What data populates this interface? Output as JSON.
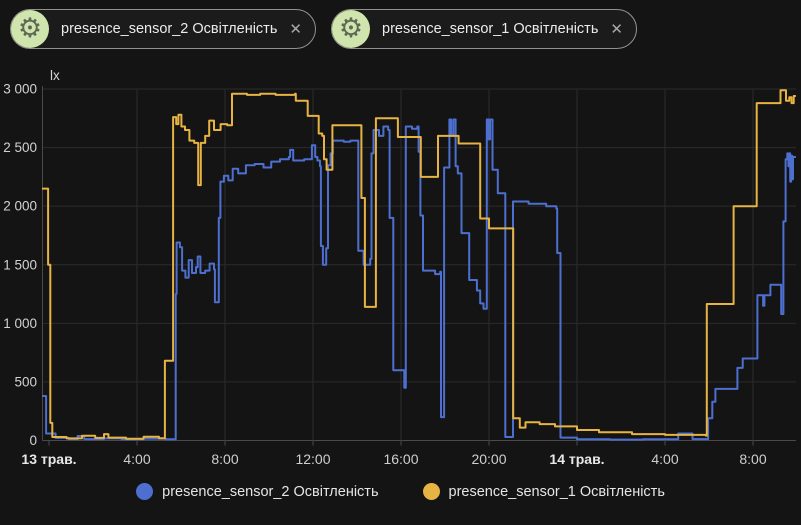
{
  "colors": {
    "background": "#141414",
    "grid": "#2b2b2b",
    "axis": "#4a4a4a",
    "tick_text": "#cfcfcf",
    "date_text": "#e8e8e8",
    "chip_icon_bg": "#cfe5ad",
    "chip_icon_fg": "#5d6954",
    "series_blue": "#4d6fd0",
    "series_yellow": "#e7b342"
  },
  "chips": [
    {
      "label": "presence_sensor_2 Освітленість",
      "icon": "gear-icon",
      "close": "✕"
    },
    {
      "label": "presence_sensor_1 Освітленість",
      "icon": "gear-icon",
      "close": "✕"
    }
  ],
  "legend": [
    {
      "label": "presence_sensor_2 Освітленість",
      "color": "#4d6fd0"
    },
    {
      "label": "presence_sensor_1 Освітленість",
      "color": "#e7b342"
    }
  ],
  "chart_data": {
    "type": "line",
    "unit": "lx",
    "grid": true,
    "legend_position": "bottom",
    "y_axis": {
      "max": 3000,
      "min": 0,
      "ticks": [
        {
          "v": 3000,
          "label": "3 000"
        },
        {
          "v": 2500,
          "label": "2 500"
        },
        {
          "v": 2000,
          "label": "2 000"
        },
        {
          "v": 1500,
          "label": "1 500"
        },
        {
          "v": 1000,
          "label": "1 000"
        },
        {
          "v": 500,
          "label": "500"
        },
        {
          "v": 0,
          "label": "0"
        }
      ]
    },
    "x_axis": {
      "note": "t = hours since 13 May 00:00, range shown -0.32 .. 33.95",
      "ticks": [
        {
          "t": 0,
          "label": "13 трав.",
          "bold": true
        },
        {
          "t": 4,
          "label": "4:00"
        },
        {
          "t": 8,
          "label": "8:00"
        },
        {
          "t": 12,
          "label": "12:00"
        },
        {
          "t": 16,
          "label": "16:00"
        },
        {
          "t": 20,
          "label": "20:00"
        },
        {
          "t": 24,
          "label": "14 трав.",
          "bold": true
        },
        {
          "t": 28,
          "label": "4:00"
        },
        {
          "t": 32,
          "label": "8:00"
        }
      ]
    },
    "series": [
      {
        "name": "presence_sensor_2 Освітленість",
        "color": "#4d6fd0",
        "step": true,
        "points": [
          [
            -0.32,
            380
          ],
          [
            -0.18,
            380
          ],
          [
            -0.13,
            60
          ],
          [
            0.3,
            22
          ],
          [
            0.9,
            12
          ],
          [
            1.25,
            12
          ],
          [
            1.3,
            38
          ],
          [
            1.55,
            38
          ],
          [
            1.6,
            12
          ],
          [
            2.5,
            18
          ],
          [
            3.3,
            10
          ],
          [
            4.3,
            16
          ],
          [
            5.3,
            10
          ],
          [
            5.73,
            10
          ],
          [
            5.76,
            1250
          ],
          [
            5.8,
            1690
          ],
          [
            5.95,
            1650
          ],
          [
            6.05,
            1450
          ],
          [
            6.2,
            1390
          ],
          [
            6.35,
            1540
          ],
          [
            6.5,
            1430
          ],
          [
            6.68,
            1480
          ],
          [
            6.76,
            1570
          ],
          [
            6.88,
            1430
          ],
          [
            7.1,
            1450
          ],
          [
            7.3,
            1510
          ],
          [
            7.5,
            1460
          ],
          [
            7.54,
            1180
          ],
          [
            7.68,
            1180
          ],
          [
            7.72,
            1900
          ],
          [
            7.79,
            2210
          ],
          [
            7.95,
            2260
          ],
          [
            8.15,
            2220
          ],
          [
            8.35,
            2320
          ],
          [
            8.6,
            2280
          ],
          [
            8.95,
            2350
          ],
          [
            9.35,
            2360
          ],
          [
            9.75,
            2330
          ],
          [
            10.1,
            2380
          ],
          [
            10.5,
            2400
          ],
          [
            10.9,
            2420
          ],
          [
            10.96,
            2480
          ],
          [
            11.1,
            2390
          ],
          [
            11.6,
            2400
          ],
          [
            11.95,
            2520
          ],
          [
            12.1,
            2420
          ],
          [
            12.2,
            2390
          ],
          [
            12.32,
            2340
          ],
          [
            12.36,
            1660
          ],
          [
            12.45,
            1500
          ],
          [
            12.6,
            1640
          ],
          [
            12.68,
            2350
          ],
          [
            12.8,
            2450
          ],
          [
            12.9,
            2560
          ],
          [
            13.4,
            2550
          ],
          [
            13.7,
            2560
          ],
          [
            14.02,
            2560
          ],
          [
            14.06,
            1620
          ],
          [
            14.3,
            1500
          ],
          [
            14.6,
            1550
          ],
          [
            14.66,
            2450
          ],
          [
            14.75,
            2650
          ],
          [
            15.0,
            2600
          ],
          [
            15.2,
            2680
          ],
          [
            15.42,
            2650
          ],
          [
            15.48,
            1900
          ],
          [
            15.6,
            1900
          ],
          [
            15.65,
            600
          ],
          [
            16.1,
            600
          ],
          [
            16.15,
            450
          ],
          [
            16.18,
            450
          ],
          [
            16.22,
            2680
          ],
          [
            16.5,
            2660
          ],
          [
            16.74,
            2680
          ],
          [
            16.8,
            2465
          ],
          [
            16.88,
            1920
          ],
          [
            17.0,
            1450
          ],
          [
            17.35,
            1450
          ],
          [
            17.55,
            1420
          ],
          [
            17.78,
            1440
          ],
          [
            17.82,
            200
          ],
          [
            17.93,
            200
          ],
          [
            17.96,
            2330
          ],
          [
            18.15,
            2330
          ],
          [
            18.2,
            2740
          ],
          [
            18.28,
            2600
          ],
          [
            18.38,
            2740
          ],
          [
            18.48,
            2340
          ],
          [
            18.58,
            2280
          ],
          [
            18.75,
            1770
          ],
          [
            19.05,
            1770
          ],
          [
            19.1,
            1370
          ],
          [
            19.35,
            1370
          ],
          [
            19.45,
            1280
          ],
          [
            19.6,
            1170
          ],
          [
            19.75,
            1125
          ],
          [
            19.87,
            1125
          ],
          [
            19.9,
            2740
          ],
          [
            19.98,
            2570
          ],
          [
            20.05,
            2740
          ],
          [
            20.12,
            2740
          ],
          [
            20.16,
            2310
          ],
          [
            20.36,
            2310
          ],
          [
            20.4,
            2110
          ],
          [
            20.7,
            2110
          ],
          [
            20.74,
            30
          ],
          [
            21.05,
            30
          ],
          [
            21.09,
            2040
          ],
          [
            21.8,
            2020
          ],
          [
            22.6,
            2000
          ],
          [
            23.06,
            1980
          ],
          [
            23.1,
            1600
          ],
          [
            23.2,
            1600
          ],
          [
            23.25,
            25
          ],
          [
            24.0,
            10
          ],
          [
            25.5,
            8
          ],
          [
            27.0,
            10
          ],
          [
            28.55,
            10
          ],
          [
            28.6,
            60
          ],
          [
            29.2,
            60
          ],
          [
            29.25,
            12
          ],
          [
            29.92,
            12
          ],
          [
            29.96,
            190
          ],
          [
            30.12,
            190
          ],
          [
            30.15,
            330
          ],
          [
            30.26,
            330
          ],
          [
            30.29,
            440
          ],
          [
            31.25,
            440
          ],
          [
            31.29,
            620
          ],
          [
            31.49,
            620
          ],
          [
            31.53,
            700
          ],
          [
            32.16,
            700
          ],
          [
            32.2,
            1240
          ],
          [
            32.42,
            1240
          ],
          [
            32.46,
            1150
          ],
          [
            32.52,
            1240
          ],
          [
            32.76,
            1240
          ],
          [
            32.79,
            1330
          ],
          [
            33.24,
            1330
          ],
          [
            33.28,
            1080
          ],
          [
            33.34,
            1080
          ],
          [
            33.38,
            1870
          ],
          [
            33.44,
            1870
          ],
          [
            33.48,
            2400
          ],
          [
            33.56,
            2450
          ],
          [
            33.61,
            2340
          ],
          [
            33.65,
            2450
          ],
          [
            33.69,
            2210
          ],
          [
            33.73,
            2430
          ],
          [
            33.78,
            2230
          ],
          [
            33.82,
            2420
          ],
          [
            33.95,
            2420
          ]
        ]
      },
      {
        "name": "presence_sensor_1 Освітленість",
        "color": "#e7b342",
        "step": true,
        "points": [
          [
            -0.32,
            2150
          ],
          [
            -0.08,
            2150
          ],
          [
            -0.04,
            1500
          ],
          [
            0.02,
            1500
          ],
          [
            0.06,
            150
          ],
          [
            0.15,
            30
          ],
          [
            0.8,
            18
          ],
          [
            1.5,
            40
          ],
          [
            2.1,
            22
          ],
          [
            2.5,
            55
          ],
          [
            2.7,
            25
          ],
          [
            3.5,
            15
          ],
          [
            4.3,
            32
          ],
          [
            5.0,
            20
          ],
          [
            5.24,
            20
          ],
          [
            5.27,
            680
          ],
          [
            5.6,
            680
          ],
          [
            5.64,
            2760
          ],
          [
            5.78,
            2700
          ],
          [
            5.88,
            2780
          ],
          [
            6.02,
            2680
          ],
          [
            6.18,
            2650
          ],
          [
            6.38,
            2560
          ],
          [
            6.6,
            2540
          ],
          [
            6.74,
            2540
          ],
          [
            6.78,
            2180
          ],
          [
            6.86,
            2180
          ],
          [
            6.9,
            2540
          ],
          [
            7.1,
            2600
          ],
          [
            7.28,
            2730
          ],
          [
            7.5,
            2650
          ],
          [
            7.8,
            2700
          ],
          [
            8.1,
            2690
          ],
          [
            8.32,
            2960
          ],
          [
            9.0,
            2950
          ],
          [
            9.6,
            2960
          ],
          [
            10.3,
            2950
          ],
          [
            11.18,
            2960
          ],
          [
            11.22,
            2900
          ],
          [
            11.72,
            2900
          ],
          [
            11.76,
            2770
          ],
          [
            12.2,
            2770
          ],
          [
            12.26,
            2620
          ],
          [
            12.42,
            2600
          ],
          [
            12.5,
            2400
          ],
          [
            12.62,
            2310
          ],
          [
            12.84,
            2310
          ],
          [
            12.88,
            2690
          ],
          [
            14.16,
            2690
          ],
          [
            14.2,
            2070
          ],
          [
            14.32,
            2070
          ],
          [
            14.36,
            1140
          ],
          [
            14.8,
            1140
          ],
          [
            14.86,
            2750
          ],
          [
            15.8,
            2750
          ],
          [
            15.86,
            2590
          ],
          [
            16.86,
            2590
          ],
          [
            16.9,
            2250
          ],
          [
            17.62,
            2250
          ],
          [
            17.68,
            2600
          ],
          [
            18.56,
            2600
          ],
          [
            18.62,
            2535
          ],
          [
            19.56,
            2535
          ],
          [
            19.6,
            1895
          ],
          [
            19.96,
            1895
          ],
          [
            20.0,
            1810
          ],
          [
            21.06,
            1810
          ],
          [
            21.1,
            190
          ],
          [
            21.36,
            190
          ],
          [
            21.4,
            110
          ],
          [
            21.62,
            110
          ],
          [
            21.66,
            155
          ],
          [
            22.3,
            140
          ],
          [
            23.0,
            120
          ],
          [
            24.0,
            90
          ],
          [
            25.0,
            70
          ],
          [
            26.5,
            55
          ],
          [
            28.0,
            48
          ],
          [
            29.85,
            42
          ],
          [
            29.9,
            1165
          ],
          [
            31.08,
            1165
          ],
          [
            31.12,
            2000
          ],
          [
            32.12,
            2000
          ],
          [
            32.17,
            2880
          ],
          [
            33.2,
            2880
          ],
          [
            33.25,
            2990
          ],
          [
            33.45,
            2990
          ],
          [
            33.5,
            2900
          ],
          [
            33.65,
            2930
          ],
          [
            33.75,
            2880
          ],
          [
            33.85,
            2940
          ],
          [
            33.95,
            2940
          ]
        ]
      }
    ]
  }
}
